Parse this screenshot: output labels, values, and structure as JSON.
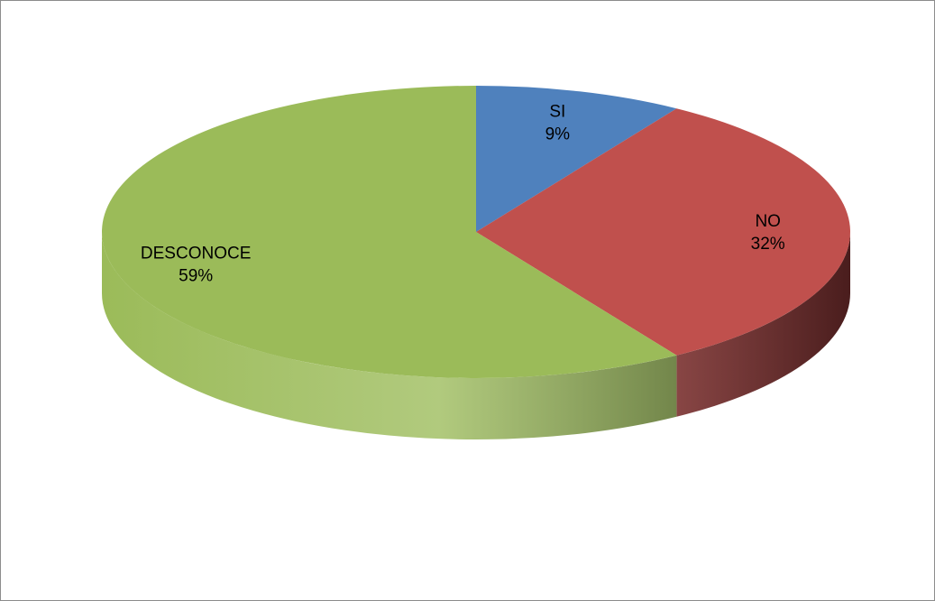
{
  "chart_data": {
    "type": "pie",
    "style": "3d",
    "categories": [
      "SI",
      "NO",
      "DESCONOCE"
    ],
    "values": [
      9,
      32,
      59
    ],
    "value_labels": [
      "9%",
      "32%",
      "59%"
    ],
    "colors": [
      "#4f81bd",
      "#c0504d",
      "#9bbb59"
    ],
    "side_colors_dark": [
      "#22385a",
      "#4a1d1d",
      "#3c4a20"
    ],
    "legend": "none",
    "title": ""
  }
}
